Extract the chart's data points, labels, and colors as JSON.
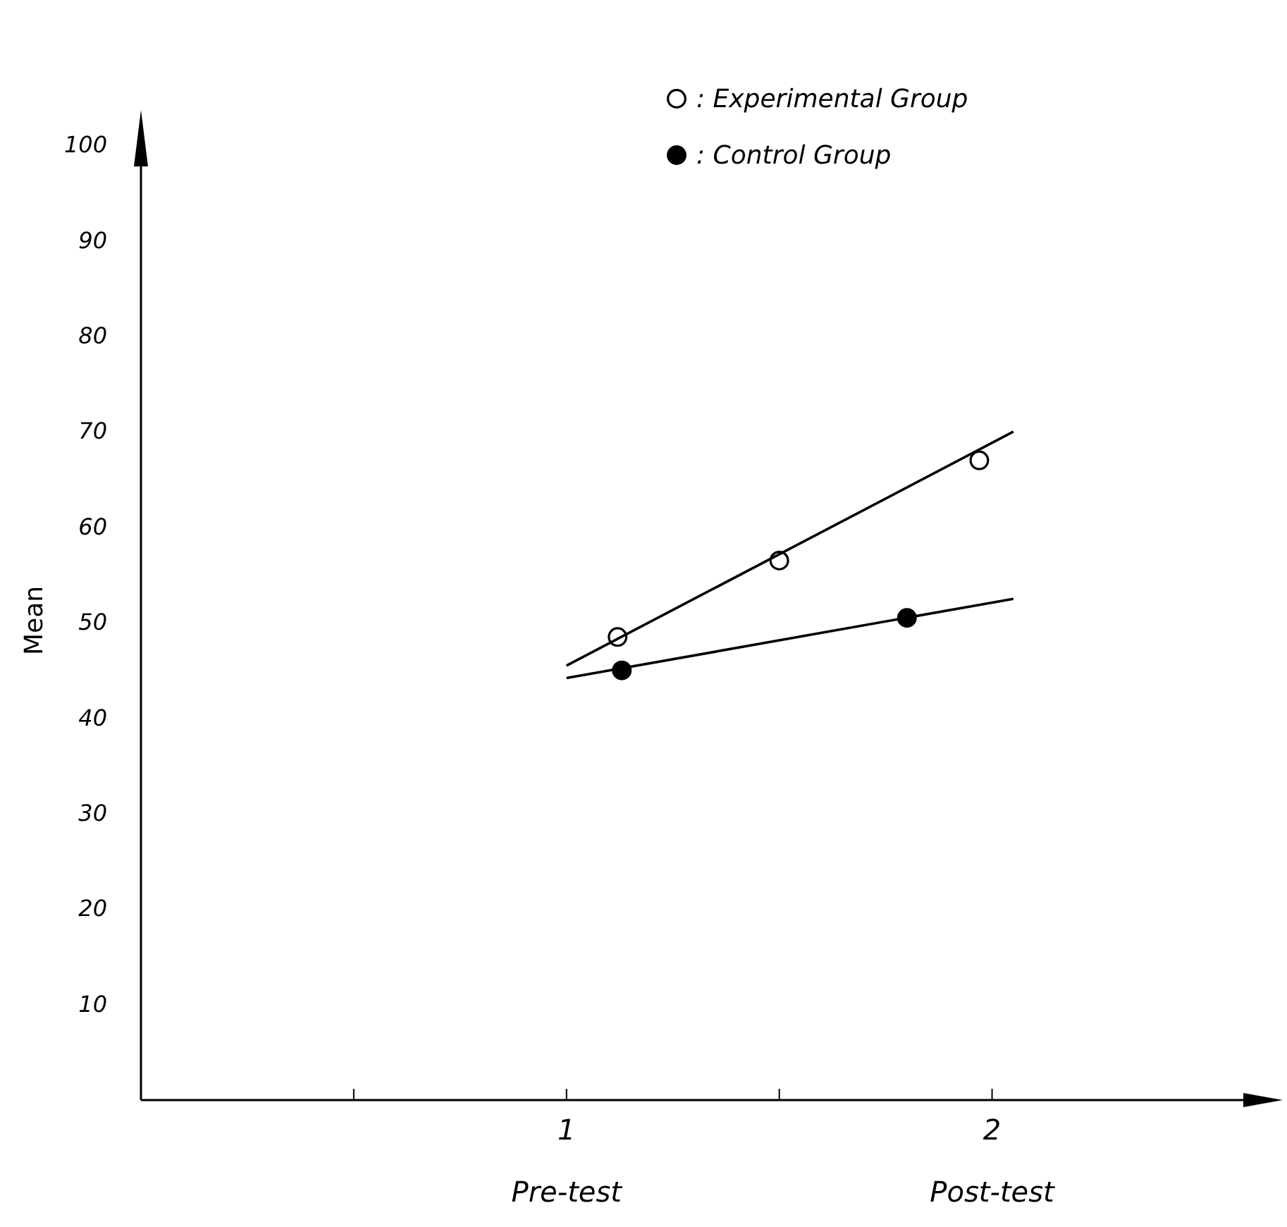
{
  "chart_data": {
    "type": "scatter",
    "ylabel": "Mean",
    "xlim": [
      0,
      2.65
    ],
    "ylim": [
      0,
      100
    ],
    "xticks": [
      {
        "value": 0.5,
        "label": null
      },
      1,
      {
        "value": 1.5,
        "label": null
      },
      2
    ],
    "yticks": [
      10,
      20,
      30,
      40,
      50,
      60,
      70,
      80,
      90,
      100
    ],
    "grid": false,
    "legend": "top right",
    "marker": "circle",
    "line_style": "solid",
    "annotations": [
      "Pre-test",
      "Post-test"
    ],
    "series": [
      {
        "name": ": Experimental Group",
        "color": "#ffffff",
        "x": [
          1.12,
          1.5,
          1.97
        ],
        "values": [
          48.5,
          56.5,
          67
        ]
      },
      {
        "name": ": Control Group",
        "color": "#000000",
        "x": [
          1.13,
          1.8
        ],
        "values": [
          45,
          50.5
        ]
      },
      {
        "type": "line",
        "marker": "none",
        "color": "#000000",
        "x": [
          1.0,
          2.05
        ],
        "values": [
          45.5,
          70
        ]
      },
      {
        "type": "line",
        "marker": "none",
        "color": "#000000",
        "x": [
          1.0,
          2.05
        ],
        "values": [
          44.2,
          52.5
        ]
      }
    ]
  }
}
